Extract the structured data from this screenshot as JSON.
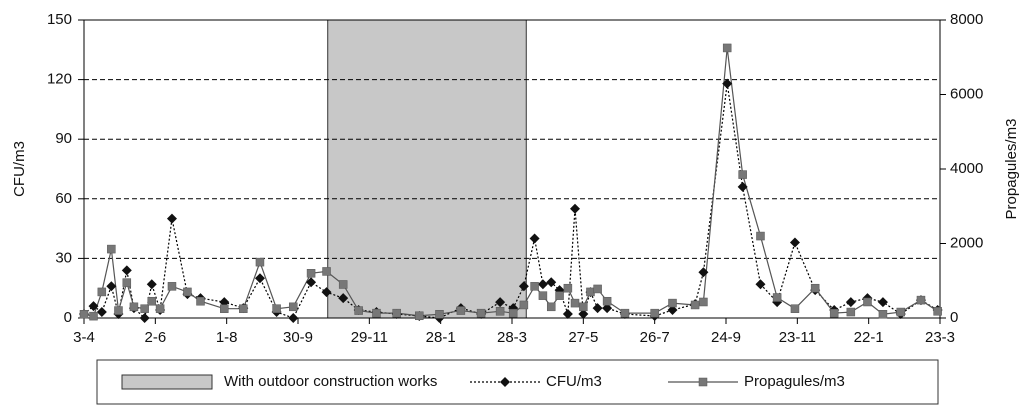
{
  "chart_data": {
    "type": "line",
    "ylabel": "CFU/m3",
    "y2label": "Propagules/m3",
    "x": [
      0,
      8,
      15,
      23,
      29,
      36,
      42,
      51,
      57,
      64,
      74,
      87,
      98,
      118,
      134,
      148,
      162,
      176,
      191,
      204,
      218,
      231,
      246,
      263,
      282,
      299,
      317,
      334,
      350,
      361,
      370,
      379,
      386,
      393,
      400,
      407,
      413,
      420,
      426,
      432,
      440,
      455,
      480,
      495,
      514,
      521,
      541,
      554,
      569,
      583,
      598,
      615,
      631,
      645,
      659,
      672,
      687,
      704,
      718
    ],
    "xlim": [
      0,
      720
    ],
    "xticks": [
      {
        "value": 0,
        "label": "3-4"
      },
      {
        "value": 60,
        "label": "2-6"
      },
      {
        "value": 120,
        "label": "1-8"
      },
      {
        "value": 180,
        "label": "30-9"
      },
      {
        "value": 240,
        "label": "29-11"
      },
      {
        "value": 300,
        "label": "28-1"
      },
      {
        "value": 360,
        "label": "28-3"
      },
      {
        "value": 420,
        "label": "27-5"
      },
      {
        "value": 480,
        "label": "26-7"
      },
      {
        "value": 540,
        "label": "24-9"
      },
      {
        "value": 600,
        "label": "23-11"
      },
      {
        "value": 660,
        "label": "22-1"
      },
      {
        "value": 720,
        "label": "23-3"
      }
    ],
    "ylim": [
      0,
      150
    ],
    "yticks": [
      0,
      30,
      60,
      90,
      120,
      150
    ],
    "y2lim": [
      0,
      8000
    ],
    "y2ticks": [
      0,
      2000,
      4000,
      6000,
      8000
    ],
    "grid": true,
    "shade": [
      205,
      372
    ],
    "shade_label": "With outdoor construction works",
    "shade_color": "#c8c8c8",
    "series": [
      {
        "name": "CFU/m3",
        "color": "#000000",
        "marker": "diamond",
        "dashed": true,
        "values": [
          2,
          6,
          3,
          16,
          2,
          24,
          5,
          0,
          17,
          4,
          50,
          12,
          10,
          8,
          5,
          20,
          3,
          0,
          18,
          13,
          10,
          4,
          3,
          2,
          1,
          0,
          5,
          2,
          8,
          5,
          16,
          40,
          17,
          18,
          14,
          2,
          55,
          2,
          13,
          5,
          5,
          2,
          1,
          4,
          7,
          23,
          118,
          66,
          17,
          8,
          38,
          14,
          4,
          8,
          10,
          8,
          2,
          9,
          4
        ]
      },
      {
        "name": "Propagules/m3",
        "color": "#808080",
        "marker": "square",
        "dashed": false,
        "axis": "y2",
        "values": [
          100,
          50,
          700,
          1850,
          200,
          950,
          300,
          250,
          450,
          250,
          850,
          700,
          450,
          250,
          250,
          1500,
          250,
          300,
          1200,
          1250,
          900,
          200,
          130,
          130,
          60,
          100,
          200,
          130,
          180,
          130,
          350,
          850,
          600,
          300,
          600,
          800,
          400,
          300,
          700,
          780,
          450,
          130,
          130,
          400,
          350,
          430,
          7250,
          3850,
          2200,
          550,
          250,
          800,
          130,
          160,
          430,
          100,
          160,
          480,
          180
        ]
      }
    ]
  }
}
